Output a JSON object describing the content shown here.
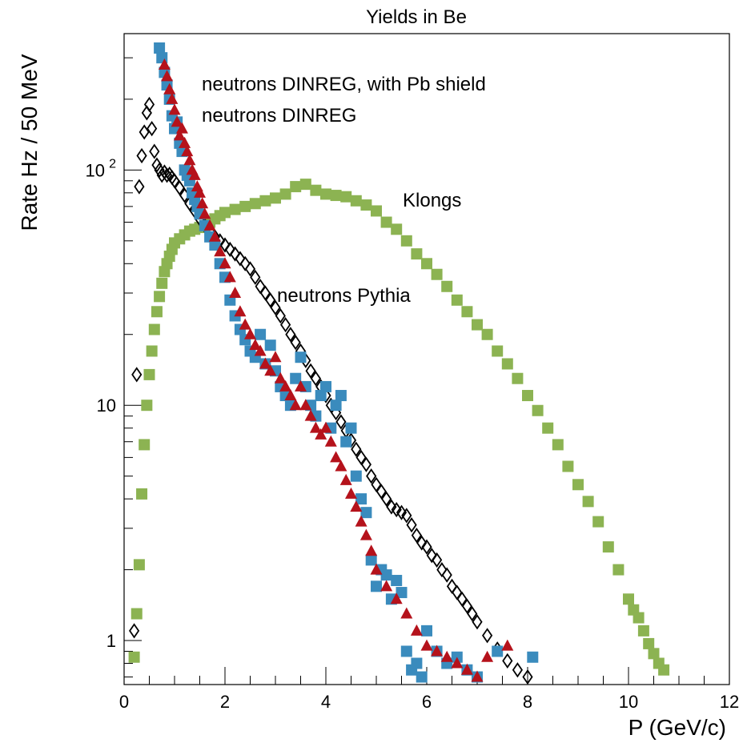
{
  "chart_data": {
    "type": "scatter",
    "title": "Yields in Be",
    "xlabel": "P (GeV/c)",
    "ylabel": "Rate  Hz / 50 MeV",
    "xlim": [
      0,
      12
    ],
    "ylim": [
      0.65,
      380
    ],
    "yscale": "log",
    "grid": false,
    "x_ticks": [
      "0",
      "2",
      "4",
      "6",
      "8",
      "10",
      "12"
    ],
    "y_ticks": [
      {
        "value": 1,
        "label": "1"
      },
      {
        "value": 10,
        "label": "10"
      },
      {
        "value": 100,
        "label": "10",
        "exponent": "2"
      }
    ],
    "annotations": [
      {
        "text": "neutrons DINREG, with Pb shield",
        "color": "#b5121b"
      },
      {
        "text": "neutrons DINREG",
        "color": "#3a8bbd"
      },
      {
        "text": "Klongs",
        "color": "#8cb352"
      },
      {
        "text": "neutrons Pythia",
        "color": "#000000"
      }
    ],
    "series": [
      {
        "marker": "square",
        "color": "#8cb352",
        "x": [
          0.2,
          0.25,
          0.3,
          0.35,
          0.4,
          0.45,
          0.5,
          0.55,
          0.6,
          0.65,
          0.7,
          0.75,
          0.8,
          0.85,
          0.9,
          0.95,
          1.0,
          1.1,
          1.2,
          1.3,
          1.4,
          1.5,
          1.6,
          1.7,
          1.8,
          1.9,
          2.0,
          2.2,
          2.4,
          2.6,
          2.8,
          3.0,
          3.2,
          3.4,
          3.6,
          3.8,
          4.0,
          4.2,
          4.4,
          4.6,
          4.8,
          5.0,
          5.2,
          5.4,
          5.6,
          5.8,
          6.0,
          6.2,
          6.4,
          6.6,
          6.8,
          7.0,
          7.2,
          7.4,
          7.6,
          7.8,
          8.0,
          8.2,
          8.4,
          8.6,
          8.8,
          9.0,
          9.2,
          9.4,
          9.6,
          9.8,
          10.0,
          10.1,
          10.2,
          10.3,
          10.4,
          10.5,
          10.6,
          10.7
        ],
        "y": [
          0.85,
          1.3,
          2.1,
          4.2,
          6.8,
          10,
          13.5,
          17,
          21,
          25,
          29,
          33,
          37,
          40,
          43,
          46,
          49,
          51,
          53,
          55,
          56,
          57,
          58,
          60,
          62,
          64,
          66,
          68,
          70,
          72,
          74,
          76,
          79,
          85,
          87,
          82,
          79,
          78,
          77,
          74,
          71,
          67,
          60,
          56,
          50,
          44,
          40,
          36,
          32,
          28,
          25,
          22,
          20,
          17,
          15,
          13,
          11,
          9.5,
          8,
          6.8,
          5.5,
          4.6,
          3.9,
          3.2,
          2.5,
          2.0,
          1.5,
          1.35,
          1.25,
          1.1,
          0.97,
          0.88,
          0.8,
          0.75
        ]
      },
      {
        "marker": "diamond-open",
        "color": "#000000",
        "x": [
          0.2,
          0.25,
          0.3,
          0.35,
          0.4,
          0.45,
          0.5,
          0.55,
          0.6,
          0.65,
          0.7,
          0.75,
          0.8,
          0.85,
          0.9,
          0.95,
          1.0,
          1.1,
          1.2,
          1.3,
          1.4,
          1.5,
          1.6,
          1.7,
          1.8,
          1.9,
          2.0,
          2.1,
          2.2,
          2.3,
          2.4,
          2.5,
          2.6,
          2.7,
          2.8,
          2.9,
          3.0,
          3.1,
          3.2,
          3.3,
          3.4,
          3.5,
          3.6,
          3.7,
          3.8,
          3.9,
          4.0,
          4.1,
          4.2,
          4.3,
          4.4,
          4.5,
          4.6,
          4.7,
          4.8,
          4.9,
          5.0,
          5.1,
          5.2,
          5.3,
          5.4,
          5.5,
          5.6,
          5.7,
          5.8,
          5.9,
          6.0,
          6.1,
          6.2,
          6.3,
          6.4,
          6.5,
          6.6,
          6.7,
          6.8,
          6.9,
          7.0,
          7.2,
          7.4,
          7.6,
          7.8,
          8.0
        ],
        "y": [
          1.1,
          13.5,
          85,
          115,
          145,
          175,
          190,
          150,
          120,
          105,
          100,
          95,
          98,
          95,
          96,
          93,
          90,
          84,
          78,
          72,
          67,
          62,
          58,
          55,
          52,
          50,
          48,
          46,
          44,
          42,
          40,
          38,
          35,
          32,
          30,
          28,
          26,
          24,
          22,
          20,
          18.5,
          17,
          15.5,
          14,
          13,
          12,
          11,
          10,
          9.3,
          8.5,
          7.8,
          7.1,
          6.5,
          6,
          5.6,
          5,
          4.6,
          4.3,
          4,
          3.7,
          3.6,
          3.5,
          3.4,
          3.1,
          2.8,
          2.6,
          2.5,
          2.3,
          2.2,
          2.0,
          1.9,
          1.7,
          1.6,
          1.5,
          1.4,
          1.3,
          1.2,
          1.05,
          0.92,
          0.82,
          0.75,
          0.7
        ]
      },
      {
        "marker": "square",
        "color": "#3a8bbd",
        "x": [
          0.7,
          0.75,
          0.8,
          0.85,
          0.9,
          0.95,
          1.0,
          1.05,
          1.1,
          1.15,
          1.2,
          1.25,
          1.3,
          1.35,
          1.4,
          1.45,
          1.5,
          1.6,
          1.7,
          1.8,
          1.9,
          2.0,
          2.1,
          2.2,
          2.3,
          2.4,
          2.5,
          2.6,
          2.7,
          2.8,
          2.9,
          3.0,
          3.1,
          3.2,
          3.3,
          3.4,
          3.5,
          3.6,
          3.7,
          3.8,
          3.9,
          4.0,
          4.1,
          4.2,
          4.3,
          4.4,
          4.5,
          4.6,
          4.7,
          4.8,
          4.9,
          5.0,
          5.1,
          5.2,
          5.3,
          5.4,
          5.5,
          5.6,
          5.7,
          5.8,
          5.9,
          6.0,
          6.2,
          6.4,
          6.6,
          6.8,
          7.0,
          7.4,
          8.1
        ],
        "y": [
          330,
          300,
          260,
          230,
          200,
          170,
          150,
          160,
          130,
          120,
          100,
          95,
          90,
          80,
          75,
          70,
          65,
          58,
          52,
          48,
          40,
          35,
          28,
          24,
          21,
          19,
          17,
          16,
          20,
          15,
          18,
          14,
          12,
          11,
          10,
          13,
          16,
          12,
          10,
          9,
          11,
          12,
          8,
          10,
          11,
          7,
          8,
          5,
          4,
          3.5,
          2.2,
          1.7,
          2,
          1.9,
          1.5,
          1.8,
          1.6,
          0.9,
          0.75,
          0.8,
          0.7,
          1.1,
          0.9,
          0.8,
          0.85,
          0.75,
          0.7,
          0.9,
          0.85
        ]
      },
      {
        "marker": "triangle",
        "color": "#b5121b",
        "x": [
          0.8,
          0.85,
          0.9,
          0.95,
          1.0,
          1.05,
          1.1,
          1.15,
          1.2,
          1.25,
          1.3,
          1.35,
          1.4,
          1.45,
          1.5,
          1.55,
          1.6,
          1.7,
          1.8,
          1.9,
          2.0,
          2.1,
          2.2,
          2.3,
          2.4,
          2.5,
          2.6,
          2.7,
          2.8,
          2.9,
          3.0,
          3.1,
          3.2,
          3.3,
          3.4,
          3.5,
          3.6,
          3.7,
          3.8,
          3.9,
          4.0,
          4.1,
          4.2,
          4.3,
          4.4,
          4.5,
          4.6,
          4.7,
          4.8,
          4.9,
          5.0,
          5.2,
          5.4,
          5.6,
          5.8,
          6.0,
          6.2,
          6.4,
          6.6,
          6.8,
          7.0,
          7.2,
          7.6
        ],
        "y": [
          280,
          250,
          220,
          200,
          180,
          160,
          140,
          150,
          130,
          120,
          110,
          100,
          95,
          85,
          80,
          72,
          65,
          58,
          52,
          45,
          40,
          35,
          30,
          25,
          22,
          20,
          18,
          17,
          15,
          14,
          16,
          13,
          12,
          11,
          10,
          12,
          10,
          9,
          8,
          7.5,
          8,
          7,
          6,
          5.5,
          4.8,
          4.2,
          3.7,
          3.2,
          2.8,
          2.4,
          2.0,
          1.7,
          1.5,
          1.3,
          1.1,
          0.95,
          0.9,
          0.85,
          0.8,
          0.75,
          0.7,
          0.85,
          0.95
        ]
      }
    ]
  }
}
